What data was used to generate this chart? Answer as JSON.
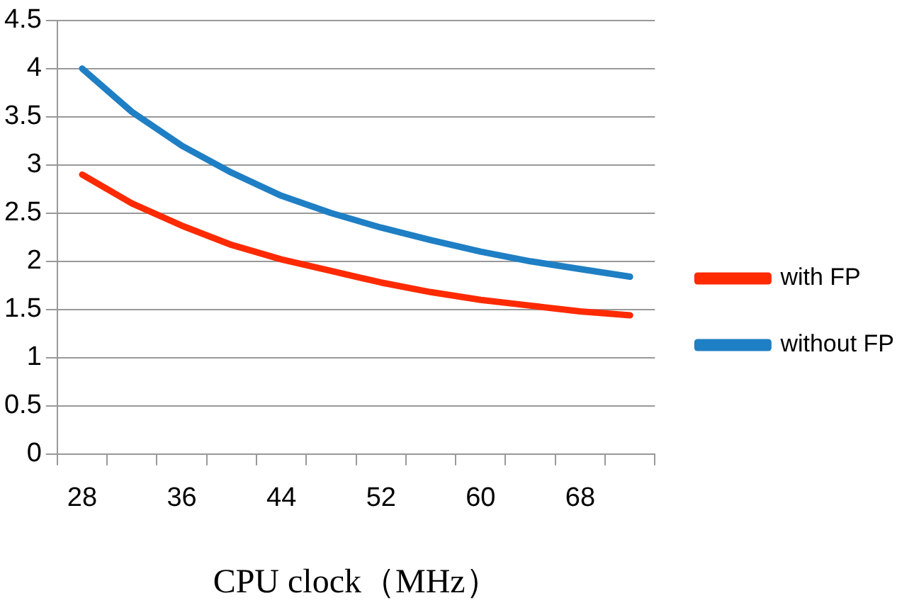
{
  "chart_data": {
    "type": "line",
    "xlabel": "CPU clock（MHz）",
    "categories": [
      "28",
      null,
      "36",
      null,
      "44",
      null,
      "52",
      null,
      "60",
      null,
      "68",
      null
    ],
    "series": [
      {
        "name": "with FP",
        "color": "#ff2a00",
        "values": [
          2.9,
          2.6,
          2.37,
          2.17,
          2.02,
          1.9,
          1.78,
          1.68,
          1.6,
          1.54,
          1.48,
          1.44
        ]
      },
      {
        "name": "without FP",
        "color": "#1f7fc4",
        "values": [
          4.0,
          3.55,
          3.2,
          2.92,
          2.68,
          2.5,
          2.35,
          2.22,
          2.1,
          2.0,
          1.92,
          1.84
        ]
      }
    ],
    "ylim": [
      0,
      4.5
    ],
    "yticks": [
      0,
      0.5,
      1,
      1.5,
      2,
      2.5,
      3,
      3.5,
      4,
      4.5
    ],
    "grid": "y",
    "legend": "right",
    "marker": "none",
    "line_style": "solid"
  }
}
